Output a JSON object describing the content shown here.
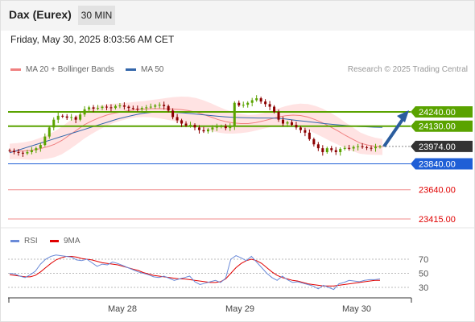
{
  "header": {
    "title": "Dax (Eurex)",
    "timeframe": "30 MIN"
  },
  "datetime": "Friday, May 30, 2025 8:03:56 AM CET",
  "legend": {
    "ma20_label": "MA 20 + Bollinger Bands",
    "ma50_label": "MA 50",
    "research": "Research © 2025 Trading Central"
  },
  "rsi_legend": {
    "rsi_label": "RSI",
    "ma9_label": "9MA"
  },
  "colors": {
    "resistance": "#5aa300",
    "support_blue": "#1f5fd6",
    "support_red": "#e00000",
    "ma20": "#f08080",
    "ma50": "#3366aa",
    "bollinger_fill": "#ffdcdc",
    "up_candle": "#5aa300",
    "down_candle": "#8b0000",
    "arrow": "#2b5d9e",
    "rsi_line": "#6a8ad8",
    "rsi_ma": "#e00000"
  },
  "chart_data": {
    "type": "candlestick",
    "instrument": "Dax (Eurex)",
    "interval": "30 MIN",
    "x_ticks": [
      "May 28",
      "May 29",
      "May 30"
    ],
    "ylim": [
      23350,
      24400
    ],
    "levels": [
      {
        "value": 24240.0,
        "label": "24240.00",
        "kind": "resistance"
      },
      {
        "value": 24130.0,
        "label": "24130.00",
        "kind": "resistance"
      },
      {
        "value": 23974.0,
        "label": "23974.00",
        "kind": "last"
      },
      {
        "value": 23840.0,
        "label": "23840.00",
        "kind": "support"
      },
      {
        "value": 23640.0,
        "label": "23640.00",
        "kind": "support"
      },
      {
        "value": 23415.0,
        "label": "23415.00",
        "kind": "support"
      }
    ],
    "close": [
      23940,
      23930,
      23925,
      23920,
      23930,
      23945,
      23960,
      23985,
      24050,
      24120,
      24180,
      24210,
      24205,
      24195,
      24200,
      24180,
      24220,
      24260,
      24275,
      24265,
      24270,
      24280,
      24275,
      24270,
      24285,
      24290,
      24280,
      24270,
      24265,
      24260,
      24270,
      24275,
      24280,
      24290,
      24295,
      24285,
      24250,
      24200,
      24175,
      24150,
      24135,
      24140,
      24120,
      24100,
      24090,
      24105,
      24120,
      24125,
      24130,
      24115,
      24128,
      24310,
      24290,
      24295,
      24310,
      24330,
      24345,
      24320,
      24300,
      24280,
      24240,
      24180,
      24150,
      24160,
      24140,
      24120,
      24100,
      24080,
      24030,
      23990,
      23960,
      23930,
      23960,
      23945,
      23930,
      23955,
      23962,
      23958,
      23970,
      23975,
      23968,
      23963,
      23960,
      23970,
      23974
    ],
    "ma20": [
      23935,
      23938,
      23940,
      23945,
      23955,
      23970,
      23990,
      24020,
      24060,
      24100,
      24140,
      24170,
      24195,
      24215,
      24230,
      24240,
      24250,
      24258,
      24262,
      24265,
      24265,
      24264,
      24262,
      24258,
      24250,
      24238,
      24220,
      24200,
      24180,
      24165,
      24155,
      24150,
      24150,
      24158,
      24170,
      24185,
      24200,
      24210,
      24215,
      24212,
      24200,
      24180,
      24155,
      24125,
      24095,
      24060,
      24030,
      24000,
      23985,
      23975,
      23970
    ],
    "ma50": [
      23925,
      23945,
      23965,
      23985,
      24005,
      24025,
      24045,
      24065,
      24085,
      24105,
      24125,
      24145,
      24165,
      24185,
      24200,
      24215,
      24228,
      24236,
      24240,
      24240,
      24236,
      24232,
      24226,
      24220,
      24214,
      24208,
      24202,
      24198,
      24196,
      24194,
      24193,
      24193,
      24192,
      24188,
      24180,
      24172,
      24165,
      24158,
      24150,
      24144,
      24138,
      24133,
      24128,
      24125,
      24122,
      24120
    ],
    "projection": {
      "from": 23974,
      "to": 24240
    },
    "rsi": {
      "ylim": [
        20,
        80
      ],
      "levels": [
        70,
        50,
        30
      ],
      "rsi": [
        50,
        49,
        46,
        44,
        48,
        53,
        63,
        70,
        74,
        76,
        75,
        74,
        73,
        69,
        68,
        70,
        65,
        60,
        63,
        62,
        66,
        64,
        61,
        58,
        55,
        52,
        50,
        48,
        45,
        44,
        46,
        43,
        40,
        42,
        44,
        46,
        38,
        34,
        36,
        38,
        40,
        37,
        43,
        70,
        75,
        72,
        68,
        74,
        66,
        58,
        50,
        44,
        40,
        46,
        41,
        37,
        38,
        36,
        34,
        32,
        28,
        33,
        30,
        27,
        35,
        37,
        40,
        39,
        38,
        40,
        41,
        41,
        42
      ],
      "ma9": [
        48,
        47,
        46,
        45,
        45,
        47,
        52,
        58,
        64,
        69,
        72,
        74,
        74,
        73,
        71,
        70,
        69,
        67,
        65,
        64,
        63,
        62,
        60,
        58,
        56,
        54,
        51,
        49,
        47,
        46,
        45,
        44,
        43,
        42,
        42,
        41,
        40,
        39,
        38,
        37,
        37,
        38,
        42,
        50,
        58,
        64,
        68,
        70,
        68,
        64,
        58,
        52,
        47,
        44,
        42,
        40,
        39,
        37,
        35,
        34,
        33,
        32,
        32,
        32,
        33,
        34,
        35,
        36,
        37,
        38,
        39,
        40,
        40
      ]
    }
  }
}
